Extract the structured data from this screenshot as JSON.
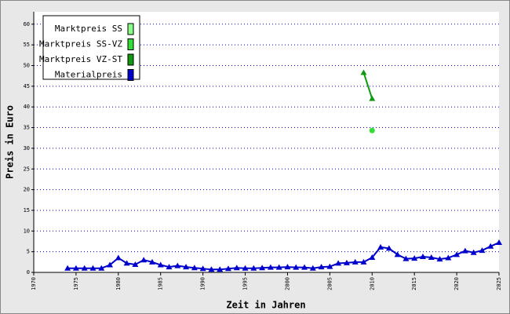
{
  "chart_data": {
    "type": "line",
    "x_label": "Zeit in Jahren",
    "y_label": "Preis in Euro",
    "xlim": [
      1970,
      2025
    ],
    "ylim": [
      0,
      63
    ],
    "xticks": [
      1970,
      1975,
      1980,
      1985,
      1990,
      1995,
      2000,
      2005,
      2010,
      2015,
      2020,
      2025
    ],
    "yticks": [
      0,
      5,
      10,
      15,
      20,
      25,
      30,
      35,
      40,
      45,
      50,
      55,
      60
    ],
    "grid": true,
    "legend": "upper-left",
    "series": [
      {
        "name": "Marktpreis SS",
        "color": "#88ff88",
        "x": [],
        "values": []
      },
      {
        "name": "Marktpreis SS-VZ",
        "color": "#33dd33",
        "x": [
          2010
        ],
        "values": [
          34.3
        ]
      },
      {
        "name": "Marktpreis VZ-ST",
        "color": "#119911",
        "x": [
          2009,
          2010
        ],
        "values": [
          48.3,
          42.0
        ]
      },
      {
        "name": "Materialpreis",
        "color": "#0000cc",
        "x": [
          1974,
          1975,
          1976,
          1977,
          1978,
          1979,
          1980,
          1981,
          1982,
          1983,
          1984,
          1985,
          1986,
          1987,
          1988,
          1989,
          1990,
          1991,
          1992,
          1993,
          1994,
          1995,
          1996,
          1997,
          1998,
          1999,
          2000,
          2001,
          2002,
          2003,
          2004,
          2005,
          2006,
          2007,
          2008,
          2009,
          2010,
          2011,
          2012,
          2013,
          2014,
          2015,
          2016,
          2017,
          2018,
          2019,
          2020,
          2021,
          2022,
          2023,
          2024,
          2025
        ],
        "values": [
          1.0,
          1.0,
          1.0,
          1.0,
          1.0,
          1.8,
          3.5,
          2.2,
          1.9,
          3.0,
          2.5,
          1.8,
          1.3,
          1.6,
          1.3,
          1.1,
          0.9,
          0.7,
          0.7,
          0.9,
          1.1,
          1.0,
          1.0,
          1.1,
          1.2,
          1.2,
          1.3,
          1.2,
          1.2,
          1.0,
          1.3,
          1.4,
          2.2,
          2.3,
          2.5,
          2.5,
          3.6,
          6.1,
          5.8,
          4.3,
          3.3,
          3.4,
          3.8,
          3.6,
          3.2,
          3.5,
          4.3,
          5.2,
          4.8,
          5.3,
          6.3,
          7.2
        ]
      }
    ]
  }
}
